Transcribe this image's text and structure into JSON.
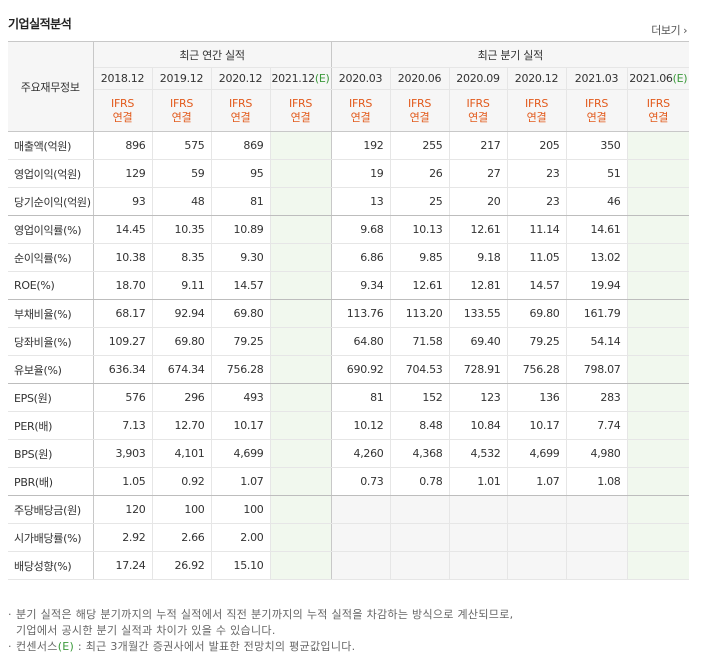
{
  "title": "기업실적분석",
  "more_link": "더보기 ›",
  "table": {
    "row_header": "주요재무정보",
    "groups": [
      {
        "label": "최근 연간 실적",
        "columns": [
          {
            "period": "2018.12",
            "accounting": "IFRS",
            "basis": "연결"
          },
          {
            "period": "2019.12",
            "accounting": "IFRS",
            "basis": "연결"
          },
          {
            "period": "2020.12",
            "accounting": "IFRS",
            "basis": "연결"
          },
          {
            "period": "2021.12",
            "estimate": "(E)",
            "accounting": "IFRS",
            "basis": "연결"
          }
        ]
      },
      {
        "label": "최근 분기 실적",
        "columns": [
          {
            "period": "2020.03",
            "accounting": "IFRS",
            "basis": "연결"
          },
          {
            "period": "2020.06",
            "accounting": "IFRS",
            "basis": "연결"
          },
          {
            "period": "2020.09",
            "accounting": "IFRS",
            "basis": "연결"
          },
          {
            "period": "2020.12",
            "accounting": "IFRS",
            "basis": "연결"
          },
          {
            "period": "2021.03",
            "accounting": "IFRS",
            "basis": "연결"
          },
          {
            "period": "2021.06",
            "estimate": "(E)",
            "accounting": "IFRS",
            "basis": "연결"
          }
        ]
      }
    ],
    "rows": [
      {
        "label": "매출액(억원)",
        "values": [
          "896",
          "575",
          "869",
          null,
          "192",
          "255",
          "217",
          "205",
          "350",
          null
        ]
      },
      {
        "label": "영업이익(억원)",
        "values": [
          "129",
          "59",
          "95",
          null,
          "19",
          "26",
          "27",
          "23",
          "51",
          null
        ]
      },
      {
        "label": "당기순이익(억원)",
        "values": [
          "93",
          "48",
          "81",
          null,
          "13",
          "25",
          "20",
          "23",
          "46",
          null
        ]
      },
      {
        "label": "영업이익률(%)",
        "values": [
          "14.45",
          "10.35",
          "10.89",
          null,
          "9.68",
          "10.13",
          "12.61",
          "11.14",
          "14.61",
          null
        ]
      },
      {
        "label": "순이익률(%)",
        "values": [
          "10.38",
          "8.35",
          "9.30",
          null,
          "6.86",
          "9.85",
          "9.18",
          "11.05",
          "13.02",
          null
        ]
      },
      {
        "label": "ROE(%)",
        "values": [
          "18.70",
          "9.11",
          "14.57",
          null,
          "9.34",
          "12.61",
          "12.81",
          "14.57",
          "19.94",
          null
        ]
      },
      {
        "label": "부채비율(%)",
        "values": [
          "68.17",
          "92.94",
          "69.80",
          null,
          "113.76",
          "113.20",
          "133.55",
          "69.80",
          "161.79",
          null
        ]
      },
      {
        "label": "당좌비율(%)",
        "values": [
          "109.27",
          "69.80",
          "79.25",
          null,
          "64.80",
          "71.58",
          "69.40",
          "79.25",
          "54.14",
          null
        ]
      },
      {
        "label": "유보율(%)",
        "values": [
          "636.34",
          "674.34",
          "756.28",
          null,
          "690.92",
          "704.53",
          "728.91",
          "756.28",
          "798.07",
          null
        ]
      },
      {
        "label": "EPS(원)",
        "values": [
          "576",
          "296",
          "493",
          null,
          "81",
          "152",
          "123",
          "136",
          "283",
          null
        ]
      },
      {
        "label": "PER(배)",
        "values": [
          "7.13",
          "12.70",
          "10.17",
          null,
          "10.12",
          "8.48",
          "10.84",
          "10.17",
          "7.74",
          null
        ]
      },
      {
        "label": "BPS(원)",
        "values": [
          "3,903",
          "4,101",
          "4,699",
          null,
          "4,260",
          "4,368",
          "4,532",
          "4,699",
          "4,980",
          null
        ]
      },
      {
        "label": "PBR(배)",
        "values": [
          "1.05",
          "0.92",
          "1.07",
          null,
          "0.73",
          "0.78",
          "1.01",
          "1.07",
          "1.08",
          null
        ]
      },
      {
        "label": "주당배당금(원)",
        "values": [
          "120",
          "100",
          "100",
          null,
          null,
          null,
          null,
          null,
          null,
          null
        ]
      },
      {
        "label": "시가배당률(%)",
        "values": [
          "2.92",
          "2.66",
          "2.00",
          null,
          null,
          null,
          null,
          null,
          null,
          null
        ]
      },
      {
        "label": "배당성향(%)",
        "values": [
          "17.24",
          "26.92",
          "15.10",
          null,
          null,
          null,
          null,
          null,
          null,
          null
        ]
      }
    ]
  },
  "notes": [
    {
      "lines": [
        "분기 실적은 해당 분기까지의 누적 실적에서 직전 분기까지의 누적 실적을 차감하는 방식으로 계산되므로,",
        "기업에서 공시한 분기 실적과 차이가 있을 수 있습니다."
      ]
    },
    {
      "prefix": "컨센서스",
      "mark": "(E)",
      "text": " : 최근 3개월간 증권사에서 발표한 전망치의 평균값입니다."
    }
  ]
}
